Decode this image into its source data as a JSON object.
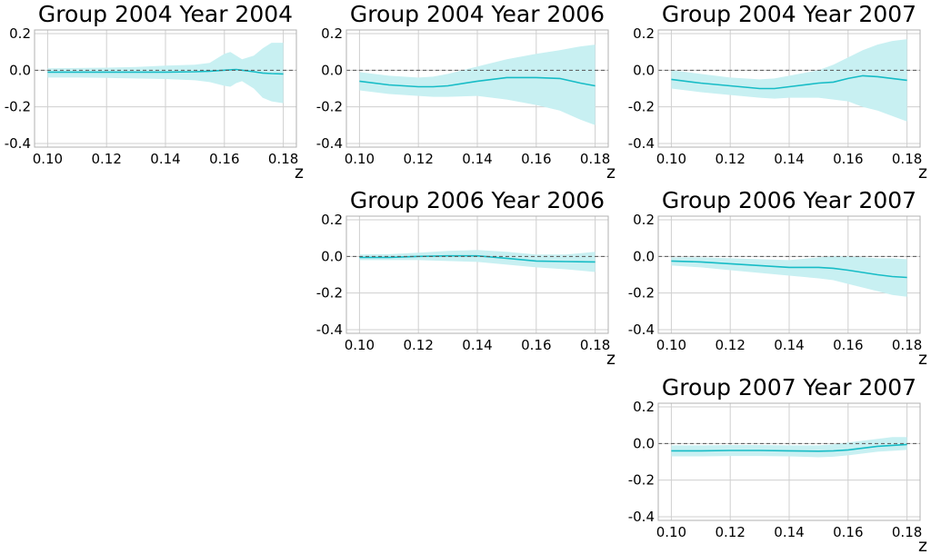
{
  "chart_data": [
    {
      "type": "line",
      "title": "Group 2004 Year 2004",
      "xlabel": "z",
      "xlim": [
        0.1,
        0.18
      ],
      "ylim": [
        -0.42,
        0.22
      ],
      "x_ticks": [
        "0.10",
        "0.12",
        "0.14",
        "0.16",
        "0.18"
      ],
      "y_ticks": [
        "0.2",
        "0.0",
        "-0.2",
        "-0.4"
      ],
      "reference_line": 0.0,
      "grid": true,
      "series": [
        {
          "x": [
            0.1,
            0.11,
            0.12,
            0.13,
            0.14,
            0.15,
            0.155,
            0.16,
            0.162,
            0.164,
            0.166,
            0.17,
            0.173,
            0.176,
            0.18
          ],
          "y": [
            -0.01,
            -0.01,
            -0.01,
            -0.01,
            -0.01,
            -0.008,
            -0.005,
            0.0,
            0.002,
            0.004,
            0.0,
            -0.008,
            -0.015,
            -0.018,
            -0.02
          ],
          "lower": [
            -0.04,
            -0.04,
            -0.042,
            -0.045,
            -0.048,
            -0.055,
            -0.065,
            -0.085,
            -0.09,
            -0.07,
            -0.06,
            -0.1,
            -0.15,
            -0.17,
            -0.18
          ],
          "upper": [
            0.01,
            0.012,
            0.014,
            0.018,
            0.025,
            0.03,
            0.04,
            0.09,
            0.1,
            0.08,
            0.06,
            0.08,
            0.12,
            0.15,
            0.15
          ]
        }
      ]
    },
    {
      "type": "line",
      "title": "Group 2004 Year 2006",
      "xlabel": "z",
      "xlim": [
        0.1,
        0.18
      ],
      "ylim": [
        -0.42,
        0.22
      ],
      "x_ticks": [
        "0.10",
        "0.12",
        "0.14",
        "0.16",
        "0.18"
      ],
      "y_ticks": [
        "0.2",
        "0.0",
        "-0.2",
        "-0.4"
      ],
      "reference_line": 0.0,
      "grid": true,
      "series": [
        {
          "x": [
            0.1,
            0.11,
            0.12,
            0.125,
            0.13,
            0.14,
            0.15,
            0.16,
            0.168,
            0.175,
            0.18
          ],
          "y": [
            -0.06,
            -0.08,
            -0.09,
            -0.09,
            -0.085,
            -0.06,
            -0.04,
            -0.04,
            -0.045,
            -0.07,
            -0.085
          ],
          "lower": [
            -0.11,
            -0.13,
            -0.14,
            -0.145,
            -0.145,
            -0.14,
            -0.16,
            -0.19,
            -0.22,
            -0.27,
            -0.3
          ],
          "upper": [
            -0.01,
            -0.03,
            -0.04,
            -0.035,
            -0.02,
            0.02,
            0.06,
            0.09,
            0.11,
            0.13,
            0.14
          ]
        }
      ]
    },
    {
      "type": "line",
      "title": "Group 2004 Year 2007",
      "xlabel": "z",
      "xlim": [
        0.1,
        0.18
      ],
      "ylim": [
        -0.42,
        0.22
      ],
      "x_ticks": [
        "0.10",
        "0.12",
        "0.14",
        "0.16",
        "0.18"
      ],
      "y_ticks": [
        "0.2",
        "0.0",
        "-0.2",
        "-0.4"
      ],
      "reference_line": 0.0,
      "grid": true,
      "series": [
        {
          "x": [
            0.1,
            0.11,
            0.12,
            0.13,
            0.135,
            0.14,
            0.15,
            0.155,
            0.16,
            0.165,
            0.17,
            0.175,
            0.18
          ],
          "y": [
            -0.05,
            -0.07,
            -0.085,
            -0.1,
            -0.1,
            -0.09,
            -0.07,
            -0.065,
            -0.045,
            -0.03,
            -0.035,
            -0.045,
            -0.055
          ],
          "lower": [
            -0.1,
            -0.12,
            -0.135,
            -0.15,
            -0.155,
            -0.15,
            -0.15,
            -0.16,
            -0.17,
            -0.2,
            -0.22,
            -0.25,
            -0.28
          ],
          "upper": [
            0.0,
            -0.02,
            -0.04,
            -0.05,
            -0.045,
            -0.03,
            0.0,
            0.03,
            0.07,
            0.11,
            0.14,
            0.16,
            0.17
          ]
        }
      ]
    },
    {
      "type": "line",
      "title": "Group 2006 Year 2006",
      "xlabel": "z",
      "xlim": [
        0.1,
        0.18
      ],
      "ylim": [
        -0.42,
        0.22
      ],
      "x_ticks": [
        "0.10",
        "0.12",
        "0.14",
        "0.16",
        "0.18"
      ],
      "y_ticks": [
        "0.2",
        "0.0",
        "-0.2",
        "-0.4"
      ],
      "reference_line": 0.0,
      "grid": true,
      "series": [
        {
          "x": [
            0.1,
            0.11,
            0.12,
            0.13,
            0.14,
            0.15,
            0.16,
            0.17,
            0.18
          ],
          "y": [
            -0.005,
            -0.005,
            0.0,
            0.003,
            0.003,
            -0.01,
            -0.025,
            -0.028,
            -0.03
          ],
          "lower": [
            -0.02,
            -0.02,
            -0.02,
            -0.025,
            -0.03,
            -0.045,
            -0.06,
            -0.07,
            -0.085
          ],
          "upper": [
            0.01,
            0.012,
            0.02,
            0.03,
            0.035,
            0.025,
            0.01,
            0.01,
            0.025
          ]
        }
      ]
    },
    {
      "type": "line",
      "title": "Group 2006 Year 2007",
      "xlabel": "z",
      "xlim": [
        0.1,
        0.18
      ],
      "ylim": [
        -0.42,
        0.22
      ],
      "x_ticks": [
        "0.10",
        "0.12",
        "0.14",
        "0.16",
        "0.18"
      ],
      "y_ticks": [
        "0.2",
        "0.0",
        "-0.2",
        "-0.4"
      ],
      "reference_line": 0.0,
      "grid": true,
      "series": [
        {
          "x": [
            0.1,
            0.11,
            0.12,
            0.13,
            0.14,
            0.15,
            0.155,
            0.16,
            0.17,
            0.175,
            0.18
          ],
          "y": [
            -0.025,
            -0.03,
            -0.04,
            -0.05,
            -0.06,
            -0.06,
            -0.065,
            -0.075,
            -0.1,
            -0.11,
            -0.115
          ],
          "lower": [
            -0.05,
            -0.06,
            -0.075,
            -0.09,
            -0.105,
            -0.12,
            -0.13,
            -0.15,
            -0.19,
            -0.21,
            -0.22
          ],
          "upper": [
            -0.005,
            -0.005,
            -0.01,
            -0.015,
            -0.02,
            -0.005,
            0.0,
            0.0,
            -0.01,
            -0.01,
            -0.015
          ]
        }
      ]
    },
    {
      "type": "line",
      "title": "Group 2007 Year 2007",
      "xlabel": "z",
      "xlim": [
        0.1,
        0.18
      ],
      "ylim": [
        -0.42,
        0.22
      ],
      "x_ticks": [
        "0.10",
        "0.12",
        "0.14",
        "0.16",
        "0.18"
      ],
      "y_ticks": [
        "0.2",
        "0.0",
        "-0.2",
        "-0.4"
      ],
      "reference_line": 0.0,
      "grid": true,
      "series": [
        {
          "x": [
            0.1,
            0.11,
            0.12,
            0.13,
            0.14,
            0.15,
            0.155,
            0.16,
            0.165,
            0.17,
            0.175,
            0.18
          ],
          "y": [
            -0.04,
            -0.04,
            -0.038,
            -0.038,
            -0.04,
            -0.042,
            -0.04,
            -0.035,
            -0.025,
            -0.015,
            -0.01,
            -0.005
          ],
          "lower": [
            -0.07,
            -0.07,
            -0.068,
            -0.068,
            -0.07,
            -0.075,
            -0.072,
            -0.065,
            -0.055,
            -0.045,
            -0.04,
            -0.035
          ],
          "upper": [
            -0.01,
            -0.01,
            -0.008,
            -0.008,
            -0.01,
            -0.01,
            -0.005,
            0.005,
            0.015,
            0.025,
            0.035,
            0.035
          ]
        }
      ]
    }
  ],
  "colors": {
    "line": "#17bcc6",
    "band": "#c8f0f2",
    "zero_line": "#555555",
    "grid": "#cfcfcf",
    "frame": "#b0b0b0"
  }
}
